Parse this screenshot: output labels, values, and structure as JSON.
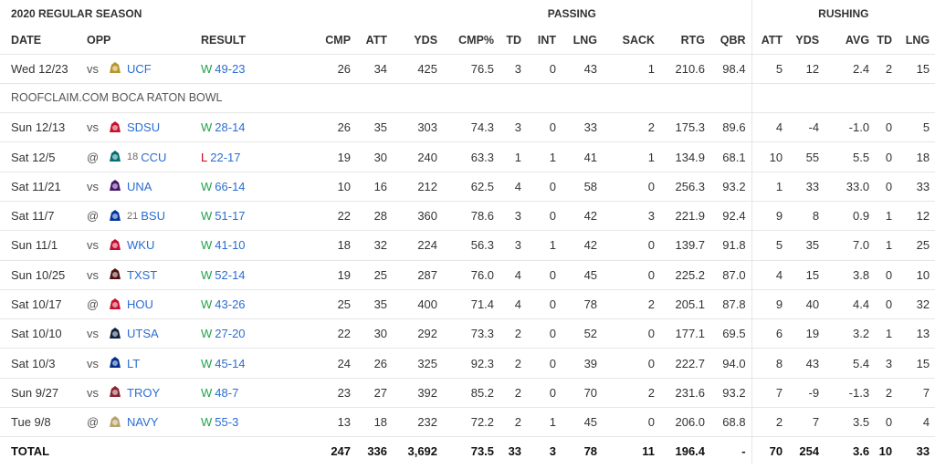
{
  "header": {
    "season": "2020 REGULAR SEASON",
    "passing": "PASSING",
    "rushing": "RUSHING"
  },
  "columns": [
    "DATE",
    "OPP",
    "RESULT",
    "CMP",
    "ATT",
    "YDS",
    "CMP%",
    "TD",
    "INT",
    "LNG",
    "SACK",
    "RTG",
    "QBR",
    "ATT",
    "YDS",
    "AVG",
    "TD",
    "LNG"
  ],
  "bowl_row": {
    "date": "Wed 12/23",
    "loc": "vs",
    "rank": "",
    "team": "UCF",
    "wl": "W",
    "score": "49-23",
    "stats": [
      "26",
      "34",
      "425",
      "76.5",
      "3",
      "0",
      "43",
      "1",
      "210.6",
      "98.4",
      "5",
      "12",
      "2.4",
      "2",
      "15"
    ],
    "label": "ROOFCLAIM.COM BOCA RATON BOWL",
    "logo_color": "#b8952a",
    "logo": "knight-icon"
  },
  "games": [
    {
      "date": "Sun 12/13",
      "loc": "vs",
      "rank": "",
      "team": "SDSU",
      "wl": "W",
      "score": "28-14",
      "stats": [
        "26",
        "35",
        "303",
        "74.3",
        "3",
        "0",
        "33",
        "2",
        "175.3",
        "89.6",
        "4",
        "-4",
        "-1.0",
        "0",
        "5"
      ],
      "logo_color": "#c8102e",
      "logo": "sdsu-logo-icon"
    },
    {
      "date": "Sat 12/5",
      "loc": "@",
      "rank": "18",
      "team": "CCU",
      "wl": "L",
      "score": "22-17",
      "stats": [
        "19",
        "30",
        "240",
        "63.3",
        "1",
        "1",
        "41",
        "1",
        "134.9",
        "68.1",
        "10",
        "55",
        "5.5",
        "0",
        "18"
      ],
      "logo_color": "#006f71",
      "logo": "chanticleer-icon"
    },
    {
      "date": "Sat 11/21",
      "loc": "vs",
      "rank": "",
      "team": "UNA",
      "wl": "W",
      "score": "66-14",
      "stats": [
        "10",
        "16",
        "212",
        "62.5",
        "4",
        "0",
        "58",
        "0",
        "256.3",
        "93.2",
        "1",
        "33",
        "33.0",
        "0",
        "33"
      ],
      "logo_color": "#46166b",
      "logo": "lion-icon"
    },
    {
      "date": "Sat 11/7",
      "loc": "@",
      "rank": "21",
      "team": "BSU",
      "wl": "W",
      "score": "51-17",
      "stats": [
        "22",
        "28",
        "360",
        "78.6",
        "3",
        "0",
        "42",
        "3",
        "221.9",
        "92.4",
        "9",
        "8",
        "0.9",
        "1",
        "12"
      ],
      "logo_color": "#0033a0",
      "logo": "bronco-icon"
    },
    {
      "date": "Sun 11/1",
      "loc": "vs",
      "rank": "",
      "team": "WKU",
      "wl": "W",
      "score": "41-10",
      "stats": [
        "18",
        "32",
        "224",
        "56.3",
        "3",
        "1",
        "42",
        "0",
        "139.7",
        "91.8",
        "5",
        "35",
        "7.0",
        "1",
        "25"
      ],
      "logo_color": "#c60c30",
      "logo": "towel-icon"
    },
    {
      "date": "Sun 10/25",
      "loc": "vs",
      "rank": "",
      "team": "TXST",
      "wl": "W",
      "score": "52-14",
      "stats": [
        "19",
        "25",
        "287",
        "76.0",
        "4",
        "0",
        "45",
        "0",
        "225.2",
        "87.0",
        "4",
        "15",
        "3.8",
        "0",
        "10"
      ],
      "logo_color": "#501214",
      "logo": "bobcat-icon"
    },
    {
      "date": "Sat 10/17",
      "loc": "@",
      "rank": "",
      "team": "HOU",
      "wl": "W",
      "score": "43-26",
      "stats": [
        "25",
        "35",
        "400",
        "71.4",
        "4",
        "0",
        "78",
        "2",
        "205.1",
        "87.8",
        "9",
        "40",
        "4.4",
        "0",
        "32"
      ],
      "logo_color": "#c8102e",
      "logo": "uh-logo-icon"
    },
    {
      "date": "Sat 10/10",
      "loc": "vs",
      "rank": "",
      "team": "UTSA",
      "wl": "W",
      "score": "27-20",
      "stats": [
        "22",
        "30",
        "292",
        "73.3",
        "2",
        "0",
        "52",
        "0",
        "177.1",
        "69.5",
        "6",
        "19",
        "3.2",
        "1",
        "13"
      ],
      "logo_color": "#0c2340",
      "logo": "roadrunner-icon"
    },
    {
      "date": "Sat 10/3",
      "loc": "vs",
      "rank": "",
      "team": "LT",
      "wl": "W",
      "score": "45-14",
      "stats": [
        "24",
        "26",
        "325",
        "92.3",
        "2",
        "0",
        "39",
        "0",
        "222.7",
        "94.0",
        "8",
        "43",
        "5.4",
        "3",
        "15"
      ],
      "logo_color": "#002f8b",
      "logo": "lt-logo-icon"
    },
    {
      "date": "Sun 9/27",
      "loc": "vs",
      "rank": "",
      "team": "TROY",
      "wl": "W",
      "score": "48-7",
      "stats": [
        "23",
        "27",
        "392",
        "85.2",
        "2",
        "0",
        "70",
        "2",
        "231.6",
        "93.2",
        "7",
        "-9",
        "-1.3",
        "2",
        "7"
      ],
      "logo_color": "#8a2432",
      "logo": "troy-logo-icon"
    },
    {
      "date": "Tue 9/8",
      "loc": "@",
      "rank": "",
      "team": "NAVY",
      "wl": "W",
      "score": "55-3",
      "stats": [
        "13",
        "18",
        "232",
        "72.2",
        "2",
        "1",
        "45",
        "0",
        "206.0",
        "68.8",
        "2",
        "7",
        "3.5",
        "0",
        "4"
      ],
      "logo_color": "#b5a36a",
      "logo": "navy-logo-icon"
    }
  ],
  "total": {
    "label": "TOTAL",
    "stats": [
      "247",
      "336",
      "3,692",
      "73.5",
      "33",
      "3",
      "78",
      "11",
      "196.4",
      "-",
      "70",
      "254",
      "3.6",
      "10",
      "33"
    ]
  },
  "colors": {
    "win": "#22a34a",
    "loss": "#d0021b",
    "link": "#2b6dd1"
  }
}
